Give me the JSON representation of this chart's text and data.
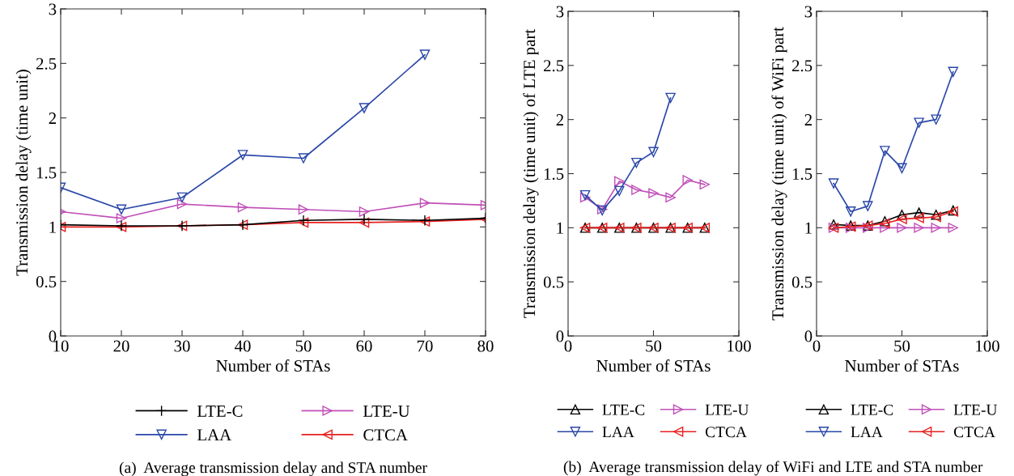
{
  "chart_data": [
    {
      "type": "line",
      "xlabel": "Number of STAs",
      "ylabel": "Transmission delay (time unit)",
      "x": [
        10,
        20,
        30,
        40,
        50,
        60,
        70,
        80
      ],
      "xlim": [
        10,
        80
      ],
      "xticks": [
        10,
        20,
        30,
        40,
        50,
        60,
        70,
        80
      ],
      "ylim": [
        0,
        3
      ],
      "yticks": [
        0,
        0.5,
        1,
        1.5,
        2,
        2.5,
        3
      ],
      "legend": "bottom",
      "grid": false,
      "annotations": [
        "(a)  Average transmission delay and STA number"
      ],
      "series": [
        {
          "name": "LTE-C",
          "color": "#000000",
          "marker": "cross",
          "values": [
            1.02,
            1.01,
            1.01,
            1.02,
            1.06,
            1.07,
            1.06,
            1.08
          ]
        },
        {
          "name": "LTE-U",
          "color": "#c050b8",
          "marker": "triangle_right",
          "values": [
            1.14,
            1.08,
            1.21,
            1.18,
            1.16,
            1.14,
            1.22,
            1.2
          ]
        },
        {
          "name": "LAA",
          "color": "#2a47a8",
          "marker": "triangle_down",
          "values": [
            1.36,
            1.16,
            1.27,
            1.66,
            1.63,
            2.09,
            2.58,
            null
          ]
        },
        {
          "name": "CTCA",
          "color": "#e82020",
          "marker": "triangle_left",
          "values": [
            1.0,
            1.0,
            1.01,
            1.02,
            1.04,
            1.04,
            1.05,
            1.07
          ]
        }
      ]
    },
    {
      "type": "line",
      "xlabel": "Number of STAs",
      "ylabel": "Transmission delay (time unit) of LTE part",
      "x": [
        10,
        20,
        30,
        40,
        50,
        60,
        70,
        80
      ],
      "xlim": [
        0,
        100
      ],
      "xticks": [
        0,
        50,
        100
      ],
      "ylim": [
        0,
        3
      ],
      "yticks": [
        0,
        0.5,
        1,
        1.5,
        2,
        2.5,
        3
      ],
      "legend": "bottom",
      "grid": false,
      "annotations": [
        "(b)  Average transmission delay of WiFi and LTE and STA number"
      ],
      "series": [
        {
          "name": "LTE-C",
          "color": "#000000",
          "marker": "triangle",
          "values": [
            1.0,
            1.0,
            1.0,
            1.0,
            1.0,
            1.0,
            1.0,
            1.0
          ]
        },
        {
          "name": "LTE-U",
          "color": "#c050b8",
          "marker": "triangle_right",
          "values": [
            1.28,
            1.17,
            1.43,
            1.35,
            1.32,
            1.28,
            1.44,
            1.4
          ]
        },
        {
          "name": "LAA",
          "color": "#2a47a8",
          "marker": "triangle_down",
          "values": [
            1.3,
            1.16,
            1.34,
            1.6,
            1.7,
            2.2,
            null,
            null
          ]
        },
        {
          "name": "CTCA",
          "color": "#e82020",
          "marker": "triangle_left",
          "values": [
            1.0,
            1.0,
            1.0,
            1.0,
            1.0,
            1.0,
            1.0,
            1.0
          ]
        }
      ]
    },
    {
      "type": "line",
      "xlabel": "Number of STAs",
      "ylabel": "Transmission delay (time unit) of WiFi part",
      "x": [
        10,
        20,
        30,
        40,
        50,
        60,
        70,
        80
      ],
      "xlim": [
        0,
        100
      ],
      "xticks": [
        0,
        50,
        100
      ],
      "ylim": [
        0,
        3
      ],
      "yticks": [
        0,
        0.5,
        1,
        1.5,
        2,
        2.5,
        3
      ],
      "legend": "bottom",
      "grid": false,
      "series": [
        {
          "name": "LTE-C",
          "color": "#000000",
          "marker": "triangle",
          "values": [
            1.03,
            1.02,
            1.02,
            1.06,
            1.12,
            1.14,
            1.12,
            1.16
          ]
        },
        {
          "name": "LTE-U",
          "color": "#c050b8",
          "marker": "triangle_right",
          "values": [
            1.0,
            1.0,
            1.0,
            1.0,
            1.0,
            1.0,
            1.0,
            1.0
          ]
        },
        {
          "name": "LAA",
          "color": "#2a47a8",
          "marker": "triangle_down",
          "values": [
            1.41,
            1.15,
            1.2,
            1.71,
            1.55,
            1.97,
            2.0,
            2.44
          ]
        },
        {
          "name": "CTCA",
          "color": "#e82020",
          "marker": "triangle_left",
          "values": [
            1.0,
            1.01,
            1.02,
            1.04,
            1.08,
            1.09,
            1.1,
            1.15
          ]
        }
      ]
    }
  ]
}
